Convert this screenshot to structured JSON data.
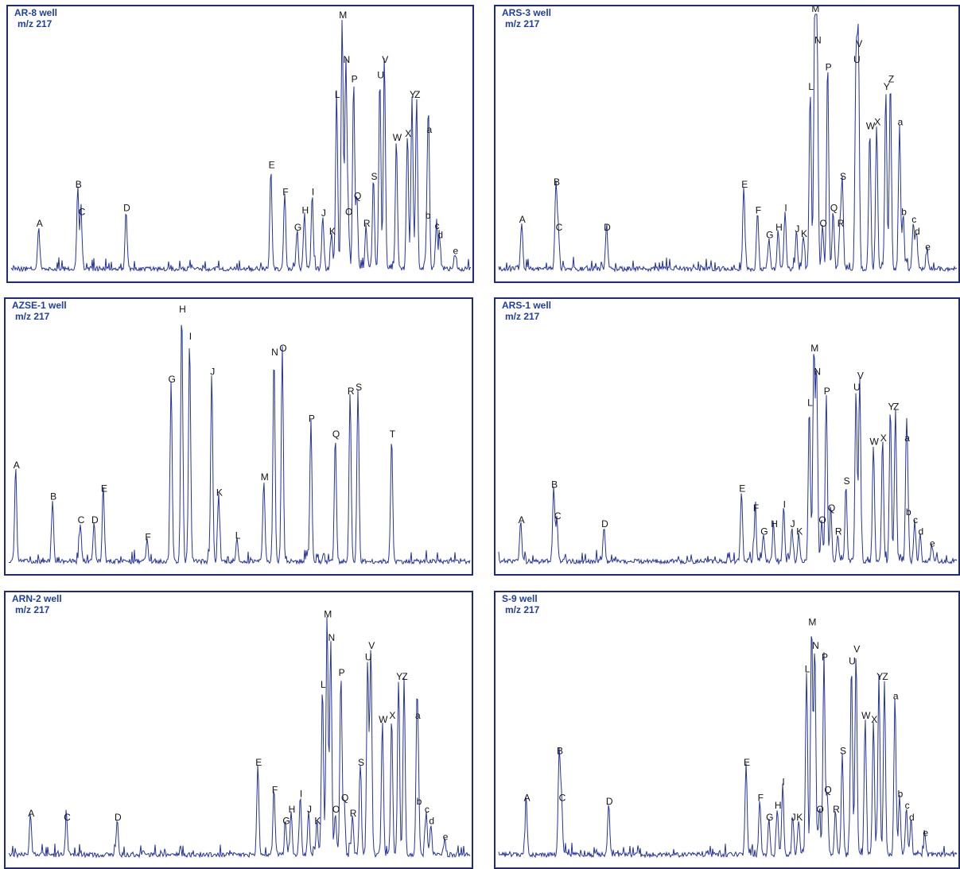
{
  "chart_data": [
    {
      "type": "line",
      "title": "AR-8 well",
      "subtitle": "m/z 217",
      "ylim": [
        0,
        330
      ],
      "peaks": [
        {
          "label": "A",
          "x": 0.06,
          "h": 55
        },
        {
          "label": "B",
          "x": 0.145,
          "h": 105
        },
        {
          "label": "C",
          "x": 0.152,
          "h": 70
        },
        {
          "label": "D",
          "x": 0.25,
          "h": 75
        },
        {
          "label": "E",
          "x": 0.565,
          "h": 130
        },
        {
          "label": "F",
          "x": 0.595,
          "h": 95
        },
        {
          "label": "G",
          "x": 0.622,
          "h": 50
        },
        {
          "label": "H",
          "x": 0.638,
          "h": 72
        },
        {
          "label": "I",
          "x": 0.655,
          "h": 95
        },
        {
          "label": "J",
          "x": 0.678,
          "h": 68
        },
        {
          "label": "K",
          "x": 0.697,
          "h": 45
        },
        {
          "label": "L",
          "x": 0.708,
          "h": 220
        },
        {
          "label": "M",
          "x": 0.72,
          "h": 322
        },
        {
          "label": "N",
          "x": 0.728,
          "h": 265
        },
        {
          "label": "O",
          "x": 0.733,
          "h": 70
        },
        {
          "label": "P",
          "x": 0.745,
          "h": 240
        },
        {
          "label": "Q",
          "x": 0.752,
          "h": 90
        },
        {
          "label": "R",
          "x": 0.772,
          "h": 55
        },
        {
          "label": "S",
          "x": 0.788,
          "h": 115
        },
        {
          "label": "U",
          "x": 0.802,
          "h": 245
        },
        {
          "label": "V",
          "x": 0.812,
          "h": 265
        },
        {
          "label": "W",
          "x": 0.838,
          "h": 165
        },
        {
          "label": "X",
          "x": 0.862,
          "h": 170
        },
        {
          "label": "Y",
          "x": 0.872,
          "h": 220
        },
        {
          "label": "Z",
          "x": 0.882,
          "h": 220
        },
        {
          "label": "a",
          "x": 0.908,
          "h": 175
        },
        {
          "label": "b",
          "x": 0.905,
          "h": 65
        },
        {
          "label": "c",
          "x": 0.925,
          "h": 52
        },
        {
          "label": "d",
          "x": 0.932,
          "h": 40
        },
        {
          "label": "e",
          "x": 0.965,
          "h": 20
        }
      ]
    },
    {
      "type": "line",
      "title": "ARS-3 well",
      "subtitle": "m/z 217",
      "ylim": [
        0,
        330
      ],
      "peaks": [
        {
          "label": "A",
          "x": 0.05,
          "h": 60
        },
        {
          "label": "B",
          "x": 0.125,
          "h": 108
        },
        {
          "label": "C",
          "x": 0.13,
          "h": 50
        },
        {
          "label": "D",
          "x": 0.235,
          "h": 50
        },
        {
          "label": "E",
          "x": 0.535,
          "h": 105
        },
        {
          "label": "F",
          "x": 0.565,
          "h": 72
        },
        {
          "label": "G",
          "x": 0.59,
          "h": 40
        },
        {
          "label": "H",
          "x": 0.61,
          "h": 50
        },
        {
          "label": "I",
          "x": 0.625,
          "h": 75
        },
        {
          "label": "J",
          "x": 0.65,
          "h": 48
        },
        {
          "label": "K",
          "x": 0.665,
          "h": 42
        },
        {
          "label": "L",
          "x": 0.68,
          "h": 230
        },
        {
          "label": "M",
          "x": 0.69,
          "h": 330
        },
        {
          "label": "N",
          "x": 0.695,
          "h": 290
        },
        {
          "label": "O",
          "x": 0.707,
          "h": 55
        },
        {
          "label": "P",
          "x": 0.718,
          "h": 255
        },
        {
          "label": "Q",
          "x": 0.73,
          "h": 75
        },
        {
          "label": "R",
          "x": 0.745,
          "h": 55
        },
        {
          "label": "S",
          "x": 0.75,
          "h": 115
        },
        {
          "label": "U",
          "x": 0.78,
          "h": 265
        },
        {
          "label": "V",
          "x": 0.785,
          "h": 285
        },
        {
          "label": "W",
          "x": 0.81,
          "h": 180
        },
        {
          "label": "X",
          "x": 0.825,
          "h": 185
        },
        {
          "label": "Y",
          "x": 0.845,
          "h": 230
        },
        {
          "label": "Z",
          "x": 0.855,
          "h": 240
        },
        {
          "label": "a",
          "x": 0.875,
          "h": 185
        },
        {
          "label": "b",
          "x": 0.883,
          "h": 70
        },
        {
          "label": "c",
          "x": 0.905,
          "h": 60
        },
        {
          "label": "d",
          "x": 0.912,
          "h": 45
        },
        {
          "label": "e",
          "x": 0.935,
          "h": 25
        }
      ]
    },
    {
      "type": "line",
      "title": "AZSE-1 well",
      "subtitle": "m/z 217",
      "ylim": [
        0,
        330
      ],
      "peaks": [
        {
          "label": "A",
          "x": 0.015,
          "h": 120
        },
        {
          "label": "B",
          "x": 0.095,
          "h": 80
        },
        {
          "label": "C",
          "x": 0.155,
          "h": 50
        },
        {
          "label": "D",
          "x": 0.185,
          "h": 50
        },
        {
          "label": "E",
          "x": 0.205,
          "h": 90
        },
        {
          "label": "F",
          "x": 0.3,
          "h": 28
        },
        {
          "label": "G",
          "x": 0.352,
          "h": 230
        },
        {
          "label": "H",
          "x": 0.375,
          "h": 320
        },
        {
          "label": "I",
          "x": 0.392,
          "h": 285
        },
        {
          "label": "J",
          "x": 0.44,
          "h": 240
        },
        {
          "label": "K",
          "x": 0.455,
          "h": 85
        },
        {
          "label": "L",
          "x": 0.495,
          "h": 30
        },
        {
          "label": "M",
          "x": 0.553,
          "h": 105
        },
        {
          "label": "N",
          "x": 0.575,
          "h": 265
        },
        {
          "label": "O",
          "x": 0.593,
          "h": 270
        },
        {
          "label": "P",
          "x": 0.655,
          "h": 180
        },
        {
          "label": "Q",
          "x": 0.708,
          "h": 160
        },
        {
          "label": "R",
          "x": 0.74,
          "h": 215
        },
        {
          "label": "S",
          "x": 0.757,
          "h": 220
        },
        {
          "label": "T",
          "x": 0.83,
          "h": 160
        }
      ]
    },
    {
      "type": "line",
      "title": "ARS-1 well",
      "subtitle": "m/z 217",
      "ylim": [
        0,
        330
      ],
      "peaks": [
        {
          "label": "A",
          "x": 0.048,
          "h": 50
        },
        {
          "label": "B",
          "x": 0.12,
          "h": 95
        },
        {
          "label": "C",
          "x": 0.127,
          "h": 55
        },
        {
          "label": "D",
          "x": 0.23,
          "h": 45
        },
        {
          "label": "E",
          "x": 0.53,
          "h": 90
        },
        {
          "label": "F",
          "x": 0.56,
          "h": 65
        },
        {
          "label": "G",
          "x": 0.578,
          "h": 35
        },
        {
          "label": "H",
          "x": 0.6,
          "h": 45
        },
        {
          "label": "I",
          "x": 0.622,
          "h": 70
        },
        {
          "label": "J",
          "x": 0.64,
          "h": 45
        },
        {
          "label": "K",
          "x": 0.655,
          "h": 35
        },
        {
          "label": "L",
          "x": 0.678,
          "h": 200
        },
        {
          "label": "M",
          "x": 0.688,
          "h": 270
        },
        {
          "label": "N",
          "x": 0.694,
          "h": 240
        },
        {
          "label": "O",
          "x": 0.705,
          "h": 50
        },
        {
          "label": "P",
          "x": 0.715,
          "h": 215
        },
        {
          "label": "Q",
          "x": 0.725,
          "h": 65
        },
        {
          "label": "R",
          "x": 0.74,
          "h": 35
        },
        {
          "label": "S",
          "x": 0.758,
          "h": 100
        },
        {
          "label": "U",
          "x": 0.78,
          "h": 220
        },
        {
          "label": "V",
          "x": 0.788,
          "h": 235
        },
        {
          "label": "W",
          "x": 0.818,
          "h": 150
        },
        {
          "label": "X",
          "x": 0.838,
          "h": 155
        },
        {
          "label": "Y",
          "x": 0.855,
          "h": 195
        },
        {
          "label": "Z",
          "x": 0.866,
          "h": 195
        },
        {
          "label": "a",
          "x": 0.89,
          "h": 155
        },
        {
          "label": "b",
          "x": 0.893,
          "h": 60
        },
        {
          "label": "c",
          "x": 0.908,
          "h": 50
        },
        {
          "label": "d",
          "x": 0.92,
          "h": 35
        },
        {
          "label": "e",
          "x": 0.945,
          "h": 20
        }
      ]
    },
    {
      "type": "line",
      "title": "ARN-2 well",
      "subtitle": "m/z 217",
      "ylim": [
        0,
        330
      ],
      "peaks": [
        {
          "label": "A",
          "x": 0.047,
          "h": 50
        },
        {
          "label": "C",
          "x": 0.125,
          "h": 45
        },
        {
          "label": "D",
          "x": 0.235,
          "h": 45
        },
        {
          "label": "E",
          "x": 0.54,
          "h": 115
        },
        {
          "label": "F",
          "x": 0.575,
          "h": 80
        },
        {
          "label": "G",
          "x": 0.6,
          "h": 40
        },
        {
          "label": "H",
          "x": 0.612,
          "h": 55
        },
        {
          "label": "I",
          "x": 0.632,
          "h": 75
        },
        {
          "label": "J",
          "x": 0.65,
          "h": 55
        },
        {
          "label": "K",
          "x": 0.668,
          "h": 40
        },
        {
          "label": "L",
          "x": 0.68,
          "h": 215
        },
        {
          "label": "M",
          "x": 0.69,
          "h": 305
        },
        {
          "label": "N",
          "x": 0.698,
          "h": 275
        },
        {
          "label": "O",
          "x": 0.708,
          "h": 55
        },
        {
          "label": "P",
          "x": 0.72,
          "h": 230
        },
        {
          "label": "Q",
          "x": 0.727,
          "h": 70
        },
        {
          "label": "R",
          "x": 0.745,
          "h": 50
        },
        {
          "label": "S",
          "x": 0.762,
          "h": 115
        },
        {
          "label": "U",
          "x": 0.778,
          "h": 250
        },
        {
          "label": "V",
          "x": 0.785,
          "h": 265
        },
        {
          "label": "W",
          "x": 0.81,
          "h": 170
        },
        {
          "label": "X",
          "x": 0.83,
          "h": 175
        },
        {
          "label": "Y",
          "x": 0.845,
          "h": 225
        },
        {
          "label": "Z",
          "x": 0.857,
          "h": 225
        },
        {
          "label": "a",
          "x": 0.885,
          "h": 175
        },
        {
          "label": "b",
          "x": 0.888,
          "h": 65
        },
        {
          "label": "c",
          "x": 0.905,
          "h": 55
        },
        {
          "label": "d",
          "x": 0.915,
          "h": 40
        },
        {
          "label": "e",
          "x": 0.945,
          "h": 20
        }
      ]
    },
    {
      "type": "line",
      "title": "S-9 well",
      "subtitle": "m/z 217",
      "ylim": [
        0,
        330
      ],
      "peaks": [
        {
          "label": "A",
          "x": 0.06,
          "h": 70
        },
        {
          "label": "B",
          "x": 0.132,
          "h": 130
        },
        {
          "label": "C",
          "x": 0.137,
          "h": 70
        },
        {
          "label": "D",
          "x": 0.24,
          "h": 65
        },
        {
          "label": "E",
          "x": 0.54,
          "h": 115
        },
        {
          "label": "F",
          "x": 0.57,
          "h": 70
        },
        {
          "label": "G",
          "x": 0.59,
          "h": 45
        },
        {
          "label": "H",
          "x": 0.608,
          "h": 60
        },
        {
          "label": "I",
          "x": 0.62,
          "h": 90
        },
        {
          "label": "J",
          "x": 0.642,
          "h": 45
        },
        {
          "label": "K",
          "x": 0.655,
          "h": 45
        },
        {
          "label": "L",
          "x": 0.672,
          "h": 235
        },
        {
          "label": "M",
          "x": 0.683,
          "h": 295
        },
        {
          "label": "N",
          "x": 0.69,
          "h": 265
        },
        {
          "label": "O",
          "x": 0.7,
          "h": 55
        },
        {
          "label": "P",
          "x": 0.71,
          "h": 250
        },
        {
          "label": "Q",
          "x": 0.717,
          "h": 80
        },
        {
          "label": "R",
          "x": 0.735,
          "h": 55
        },
        {
          "label": "S",
          "x": 0.75,
          "h": 130
        },
        {
          "label": "U",
          "x": 0.77,
          "h": 245
        },
        {
          "label": "V",
          "x": 0.78,
          "h": 260
        },
        {
          "label": "W",
          "x": 0.8,
          "h": 175
        },
        {
          "label": "X",
          "x": 0.818,
          "h": 170
        },
        {
          "label": "Y",
          "x": 0.83,
          "h": 225
        },
        {
          "label": "Z",
          "x": 0.842,
          "h": 225
        },
        {
          "label": "a",
          "x": 0.865,
          "h": 200
        },
        {
          "label": "b",
          "x": 0.875,
          "h": 75
        },
        {
          "label": "c",
          "x": 0.89,
          "h": 60
        },
        {
          "label": "d",
          "x": 0.9,
          "h": 45
        },
        {
          "label": "e",
          "x": 0.93,
          "h": 25
        }
      ]
    }
  ],
  "style": {
    "line_color": "#24349e",
    "frame_color": "#1f2a80",
    "title_color": "#1f3f9f",
    "label_color": "#111111"
  }
}
